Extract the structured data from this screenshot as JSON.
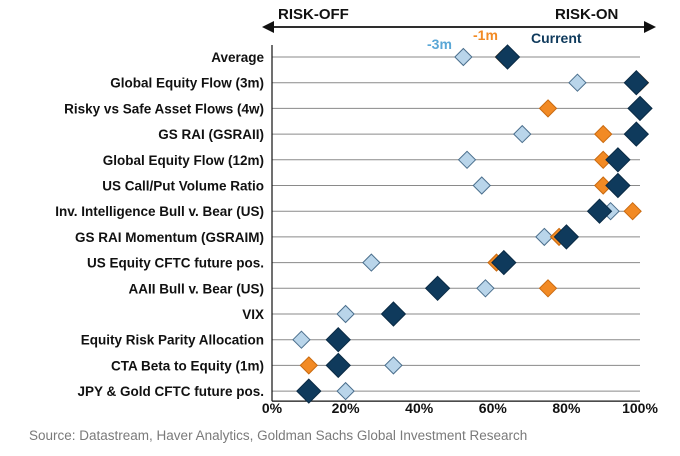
{
  "chart_data": {
    "type": "scatter",
    "header_left": "RISK-OFF",
    "header_right": "RISK-ON",
    "categories": [
      "Average",
      "Global Equity Flow (3m)",
      "Risky vs Safe Asset Flows (4w)",
      "GS RAI (GSRAII)",
      "Global Equity Flow (12m)",
      "US Call/Put Volume Ratio",
      "Inv. Intelligence Bull v. Bear (US)",
      "GS RAI Momentum (GSRAIM)",
      "US Equity CFTC future pos.",
      "AAII Bull v. Bear (US)",
      "VIX",
      "Equity Risk Parity Allocation",
      "CTA Beta to Equity (1m)",
      "JPY & Gold CFTC future pos."
    ],
    "series": [
      {
        "name": "-3m",
        "color": "#b9d5ea",
        "values": [
          52,
          83,
          100,
          68,
          53,
          57,
          92,
          74,
          27,
          58,
          20,
          8,
          33,
          20
        ]
      },
      {
        "name": "-1m",
        "color": "#f28a24",
        "values": [
          63,
          100,
          75,
          90,
          90,
          90,
          98,
          78,
          61,
          75,
          33,
          18,
          10,
          10
        ]
      },
      {
        "name": "Current",
        "color": "#0f3a5c",
        "values": [
          64,
          99,
          100,
          99,
          94,
          94,
          89,
          80,
          63,
          45,
          33,
          18,
          18,
          10
        ]
      }
    ],
    "x_ticks": [
      "0%",
      "20%",
      "40%",
      "60%",
      "80%",
      "100%"
    ],
    "xlim": [
      0,
      100
    ],
    "grid": "horizontal",
    "legend": "top-right"
  },
  "source": "Source: Datastream, Haver Analytics, Goldman Sachs Global Investment Research"
}
